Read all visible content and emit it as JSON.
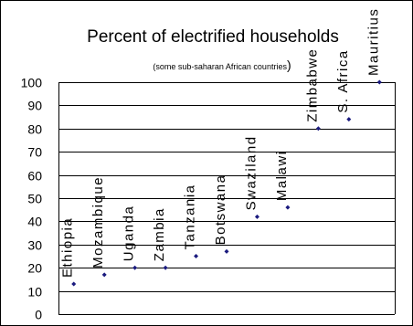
{
  "chart_data": {
    "type": "scatter",
    "title": "Percent of electrified households",
    "subtitle_main": "(some sub-saharan African countries",
    "subtitle_paren": ")",
    "xlabel": "",
    "ylabel": "",
    "ylim": [
      0,
      100
    ],
    "yticks": [
      0,
      10,
      20,
      30,
      40,
      50,
      60,
      70,
      80,
      90,
      100
    ],
    "grid": true,
    "legend": "none",
    "marker_color": "#1a1a7e",
    "categories": [
      "Ethiopia",
      "Mozambique",
      "Uganda",
      "Zambia",
      "Tanzania",
      "Botswana",
      "Swaziland",
      "Malawi",
      "Zimbabwe",
      "S. Africa",
      "Mauritius"
    ],
    "values": [
      13,
      17,
      20,
      20,
      25,
      27,
      42,
      46,
      80,
      84,
      100
    ]
  }
}
